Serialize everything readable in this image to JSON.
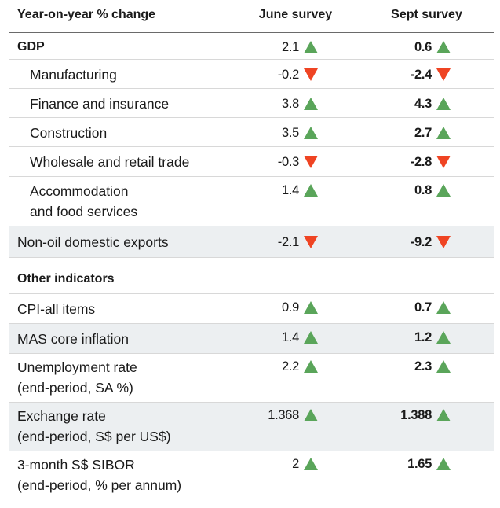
{
  "header": {
    "col1": "Year-on-year % change",
    "col2": "June survey",
    "col3": "Sept survey"
  },
  "rows": [
    {
      "label": "GDP",
      "june": "2.1",
      "june_dir": "up",
      "sept": "0.6",
      "sept_dir": "up"
    },
    {
      "label": "Manufacturing",
      "june": "-0.2",
      "june_dir": "down",
      "sept": "-2.4",
      "sept_dir": "down"
    },
    {
      "label": "Finance and insurance",
      "june": "3.8",
      "june_dir": "up",
      "sept": "4.3",
      "sept_dir": "up"
    },
    {
      "label": "Construction",
      "june": "3.5",
      "june_dir": "up",
      "sept": "2.7",
      "sept_dir": "up"
    },
    {
      "label": "Wholesale and retail trade",
      "june": "-0.3",
      "june_dir": "down",
      "sept": "-2.8",
      "sept_dir": "down"
    },
    {
      "label_line1": "Accommodation",
      "label_line2": "and food services",
      "june": "1.4",
      "june_dir": "up",
      "sept": "0.8",
      "sept_dir": "up"
    },
    {
      "label": "Non-oil domestic exports",
      "june": "-2.1",
      "june_dir": "down",
      "sept": "-9.2",
      "sept_dir": "down"
    },
    {
      "label": "Other indicators"
    },
    {
      "label": "CPI-all items",
      "june": "0.9",
      "june_dir": "up",
      "sept": "0.7",
      "sept_dir": "up"
    },
    {
      "label": "MAS core inflation",
      "june": "1.4",
      "june_dir": "up",
      "sept": "1.2",
      "sept_dir": "up"
    },
    {
      "label_line1": "Unemployment rate",
      "label_line2": "(end-period, SA %)",
      "june": "2.2",
      "june_dir": "up",
      "sept": "2.3",
      "sept_dir": "up"
    },
    {
      "label_line1": "Exchange rate",
      "label_line2": "(end-period, S$ per US$)",
      "june": "1.368",
      "june_dir": "up",
      "sept": "1.388",
      "sept_dir": "up"
    },
    {
      "label_line1": "3-month S$ SIBOR",
      "label_line2": "(end-period, % per annum)",
      "june": "2",
      "june_dir": "up",
      "sept": "1.65",
      "sept_dir": "up"
    }
  ],
  "colors": {
    "up": "#5aa55a",
    "down": "#ef4423",
    "shade": "#eceff1"
  },
  "icons": {
    "up": "triangle-up-icon",
    "down": "triangle-down-icon"
  }
}
